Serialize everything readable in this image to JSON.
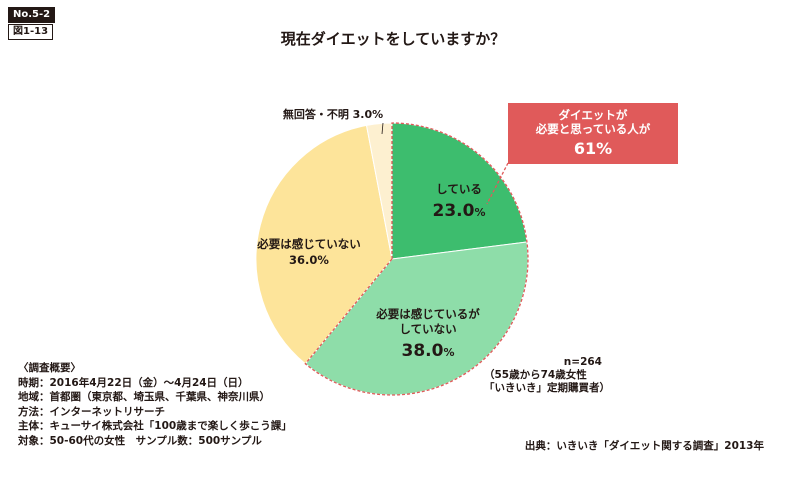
{
  "badge_no": "No.5-2",
  "badge_fig": "図1-13",
  "title": "現在ダイエットをしていますか？",
  "chart_data": {
    "type": "pie",
    "title": "現在ダイエットをしていますか？",
    "slices": [
      {
        "label": "している",
        "value": 23.0,
        "value_label": "23.0%",
        "color": "#3dbd6e"
      },
      {
        "label": "必要は感じているが していない",
        "value": 38.0,
        "value_label": "38.0%",
        "color": "#8edda9"
      },
      {
        "label": "必要は感じていない",
        "value": 36.0,
        "value_label": "36.0%",
        "color": "#fde49a"
      },
      {
        "label": "無回答・不明",
        "value": 3.0,
        "value_label": "3.0%",
        "color": "#fdf0d0"
      }
    ]
  },
  "labels": {
    "doing_name": "している",
    "doing_pct": "23.0",
    "needed_line1": "必要は感じているが",
    "needed_line2": "していない",
    "needed_pct": "38.0",
    "notneeded_name": "必要は感じていない",
    "notneeded_pct": "36.0%",
    "noanswer": "無回答・不明 3.0%",
    "percent_sign": "%"
  },
  "callout": {
    "line1": "ダイエットが",
    "line2": "必要と思っている人が",
    "pct": "61%"
  },
  "sample": {
    "n": "n=264",
    "line2": "（55歳から74歳女性",
    "line3": "「いきいき」定期購買者）"
  },
  "notes": [
    "〈調査概要〉",
    "時期：2016年4月22日（金）〜4月24日（日）",
    "地域：首都圏（東京都、埼玉県、千葉県、神奈川県）",
    "方法：インターネットリサーチ",
    "主体：キューサイ株式会社「100歳まで楽しく歩こう課」",
    "対象：50-60代の女性　サンプル数：500サンプル"
  ],
  "source": "出典：いきいき「ダイエット関する調査」2013年",
  "colors": {
    "callout": "#e05a5a",
    "dashed_border": "#e05a5a",
    "text": "#231815"
  }
}
